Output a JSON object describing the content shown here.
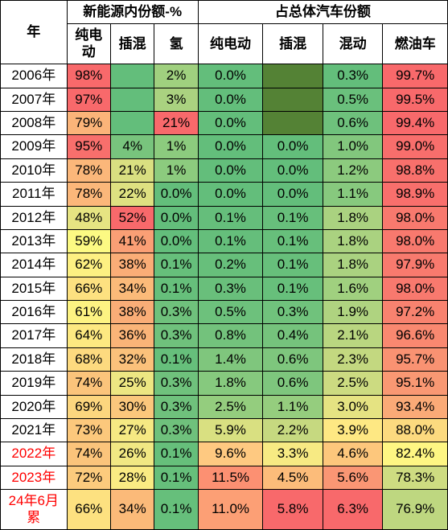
{
  "headers": {
    "year": "年",
    "group1": "新能源内份额-%",
    "group2": "占总体汽车份额",
    "nev_bev": "纯电动",
    "nev_phev": "插混",
    "nev_h2": "氢",
    "tot_bev": "纯电动",
    "tot_phev": "插混",
    "tot_hev": "混动",
    "tot_ice": "燃油车"
  },
  "rows": [
    {
      "year": "2006年",
      "yr_red": false,
      "c": [
        {
          "v": "98%",
          "bg": "#f8696b"
        },
        {
          "v": "",
          "bg": "#63be7b"
        },
        {
          "v": "2%",
          "bg": "#a0d07f"
        },
        {
          "v": "0.0%",
          "bg": "#63be7b"
        },
        {
          "v": "",
          "bg": "#548235"
        },
        {
          "v": "0.3%",
          "bg": "#63be7b"
        },
        {
          "v": "99.7%",
          "bg": "#f8696b"
        }
      ]
    },
    {
      "year": "2007年",
      "yr_red": false,
      "c": [
        {
          "v": "97%",
          "bg": "#f8696b"
        },
        {
          "v": "",
          "bg": "#63be7b"
        },
        {
          "v": "3%",
          "bg": "#aad280"
        },
        {
          "v": "0.0%",
          "bg": "#63be7b"
        },
        {
          "v": "",
          "bg": "#548235"
        },
        {
          "v": "0.5%",
          "bg": "#6ac07c"
        },
        {
          "v": "99.5%",
          "bg": "#f8696b"
        }
      ]
    },
    {
      "year": "2008年",
      "yr_red": false,
      "c": [
        {
          "v": "79%",
          "bg": "#fbb479"
        },
        {
          "v": "",
          "bg": "#63be7b"
        },
        {
          "v": "21%",
          "bg": "#f8696b"
        },
        {
          "v": "0.0%",
          "bg": "#63be7b"
        },
        {
          "v": "",
          "bg": "#548235"
        },
        {
          "v": "0.6%",
          "bg": "#6ec17c"
        },
        {
          "v": "99.4%",
          "bg": "#f8696b"
        }
      ]
    },
    {
      "year": "2009年",
      "yr_red": false,
      "c": [
        {
          "v": "95%",
          "bg": "#f86f6c"
        },
        {
          "v": "4%",
          "bg": "#78c47d"
        },
        {
          "v": "1%",
          "bg": "#8ccb7e"
        },
        {
          "v": "0.0%",
          "bg": "#63be7b"
        },
        {
          "v": "0.0%",
          "bg": "#63be7b"
        },
        {
          "v": "1.0%",
          "bg": "#82c77d"
        },
        {
          "v": "99.0%",
          "bg": "#f86e6c"
        }
      ]
    },
    {
      "year": "2010年",
      "yr_red": false,
      "c": [
        {
          "v": "78%",
          "bg": "#fbb77a"
        },
        {
          "v": "21%",
          "bg": "#d9df81"
        },
        {
          "v": "1%",
          "bg": "#8ccb7e"
        },
        {
          "v": "0.0%",
          "bg": "#63be7b"
        },
        {
          "v": "0.0%",
          "bg": "#63be7b"
        },
        {
          "v": "1.2%",
          "bg": "#8cca7e"
        },
        {
          "v": "98.8%",
          "bg": "#f8706c"
        }
      ]
    },
    {
      "year": "2011年",
      "yr_red": false,
      "c": [
        {
          "v": "78%",
          "bg": "#fbb77a"
        },
        {
          "v": "22%",
          "bg": "#dee181"
        },
        {
          "v": "0.0%",
          "bg": "#63be7b"
        },
        {
          "v": "0.0%",
          "bg": "#63be7b"
        },
        {
          "v": "0.0%",
          "bg": "#63be7b"
        },
        {
          "v": "1.1%",
          "bg": "#87c97e"
        },
        {
          "v": "98.9%",
          "bg": "#f86f6c"
        }
      ]
    },
    {
      "year": "2012年",
      "yr_red": false,
      "c": [
        {
          "v": "48%",
          "bg": "#e6e482"
        },
        {
          "v": "52%",
          "bg": "#f8696b"
        },
        {
          "v": "0.0%",
          "bg": "#63be7b"
        },
        {
          "v": "0.1%",
          "bg": "#65be7b"
        },
        {
          "v": "0.1%",
          "bg": "#67bf7b"
        },
        {
          "v": "1.8%",
          "bg": "#aad280"
        },
        {
          "v": "98.0%",
          "bg": "#f8796e"
        }
      ]
    },
    {
      "year": "2013年",
      "yr_red": false,
      "c": [
        {
          "v": "59%",
          "bg": "#fcfa83"
        },
        {
          "v": "41%",
          "bg": "#fa9f75"
        },
        {
          "v": "0.0%",
          "bg": "#63be7b"
        },
        {
          "v": "0.1%",
          "bg": "#65be7b"
        },
        {
          "v": "0.1%",
          "bg": "#67bf7b"
        },
        {
          "v": "1.8%",
          "bg": "#aad280"
        },
        {
          "v": "98.0%",
          "bg": "#f8796e"
        }
      ]
    },
    {
      "year": "2014年",
      "yr_red": false,
      "c": [
        {
          "v": "62%",
          "bg": "#fdf082"
        },
        {
          "v": "38%",
          "bg": "#faad77"
        },
        {
          "v": "0.1%",
          "bg": "#66bf7b"
        },
        {
          "v": "0.2%",
          "bg": "#67bf7b"
        },
        {
          "v": "0.1%",
          "bg": "#67bf7b"
        },
        {
          "v": "1.8%",
          "bg": "#aad280"
        },
        {
          "v": "97.9%",
          "bg": "#f87a6e"
        }
      ]
    },
    {
      "year": "2015年",
      "yr_red": false,
      "c": [
        {
          "v": "66%",
          "bg": "#fde180"
        },
        {
          "v": "34%",
          "bg": "#fbba79"
        },
        {
          "v": "0.1%",
          "bg": "#66bf7b"
        },
        {
          "v": "0.3%",
          "bg": "#69bf7b"
        },
        {
          "v": "0.1%",
          "bg": "#67bf7b"
        },
        {
          "v": "1.6%",
          "bg": "#a0d07f"
        },
        {
          "v": "98.0%",
          "bg": "#f8796e"
        }
      ]
    },
    {
      "year": "2016年",
      "yr_red": false,
      "c": [
        {
          "v": "61%",
          "bg": "#fdf382"
        },
        {
          "v": "38%",
          "bg": "#faad77"
        },
        {
          "v": "0.3%",
          "bg": "#6fc17c"
        },
        {
          "v": "0.5%",
          "bg": "#6dc17c"
        },
        {
          "v": "0.3%",
          "bg": "#70c27c"
        },
        {
          "v": "1.9%",
          "bg": "#afd380"
        },
        {
          "v": "97.2%",
          "bg": "#f8826f"
        }
      ]
    },
    {
      "year": "2017年",
      "yr_red": false,
      "c": [
        {
          "v": "64%",
          "bg": "#fde981"
        },
        {
          "v": "36%",
          "bg": "#fab478"
        },
        {
          "v": "0.3%",
          "bg": "#6fc17c"
        },
        {
          "v": "0.8%",
          "bg": "#73c27c"
        },
        {
          "v": "0.4%",
          "bg": "#75c37c"
        },
        {
          "v": "2.1%",
          "bg": "#b9d680"
        },
        {
          "v": "96.6%",
          "bg": "#f98870"
        }
      ]
    },
    {
      "year": "2018年",
      "yr_red": false,
      "c": [
        {
          "v": "68%",
          "bg": "#fdda7f"
        },
        {
          "v": "32%",
          "bg": "#fbc17b"
        },
        {
          "v": "0.1%",
          "bg": "#66bf7b"
        },
        {
          "v": "1.4%",
          "bg": "#7fc67d"
        },
        {
          "v": "0.6%",
          "bg": "#7ec67d"
        },
        {
          "v": "2.3%",
          "bg": "#c3d880"
        },
        {
          "v": "95.7%",
          "bg": "#f99272"
        }
      ]
    },
    {
      "year": "2019年",
      "yr_red": false,
      "c": [
        {
          "v": "74%",
          "bg": "#fbc47b"
        },
        {
          "v": "25%",
          "bg": "#ede682"
        },
        {
          "v": "0.3%",
          "bg": "#6fc17c"
        },
        {
          "v": "1.8%",
          "bg": "#86c97e"
        },
        {
          "v": "0.6%",
          "bg": "#7ec67d"
        },
        {
          "v": "2.5%",
          "bg": "#ccdb81"
        },
        {
          "v": "95.1%",
          "bg": "#f99873"
        }
      ]
    },
    {
      "year": "2020年",
      "yr_red": false,
      "c": [
        {
          "v": "69%",
          "bg": "#fcd67e"
        },
        {
          "v": "30%",
          "bg": "#fbc77c"
        },
        {
          "v": "0.3%",
          "bg": "#6fc17c"
        },
        {
          "v": "2.5%",
          "bg": "#94cd7e"
        },
        {
          "v": "1.1%",
          "bg": "#95cd7e"
        },
        {
          "v": "3.0%",
          "bg": "#e5e382"
        },
        {
          "v": "93.4%",
          "bg": "#faaa77"
        }
      ]
    },
    {
      "year": "2021年",
      "yr_red": false,
      "c": [
        {
          "v": "73%",
          "bg": "#fcc87c"
        },
        {
          "v": "27%",
          "bg": "#f6e983"
        },
        {
          "v": "0.3%",
          "bg": "#6fc17c"
        },
        {
          "v": "5.9%",
          "bg": "#d9e081"
        },
        {
          "v": "2.2%",
          "bg": "#c6d980"
        },
        {
          "v": "3.9%",
          "bg": "#fee883"
        },
        {
          "v": "88.0%",
          "bg": "#fcda7f"
        }
      ]
    },
    {
      "year": "2022年",
      "yr_red": true,
      "c": [
        {
          "v": "74%",
          "bg": "#fbc47b"
        },
        {
          "v": "26%",
          "bg": "#f1e883"
        },
        {
          "v": "0.1%",
          "bg": "#66bf7b"
        },
        {
          "v": "9.6%",
          "bg": "#fec981"
        },
        {
          "v": "3.3%",
          "bg": "#f7ea83"
        },
        {
          "v": "4.6%",
          "bg": "#fdc77c"
        },
        {
          "v": "82.4%",
          "bg": "#fef683"
        }
      ]
    },
    {
      "year": "2023年",
      "yr_red": true,
      "c": [
        {
          "v": "72%",
          "bg": "#fccb7d"
        },
        {
          "v": "28%",
          "bg": "#faeb83"
        },
        {
          "v": "0.1%",
          "bg": "#66bf7b"
        },
        {
          "v": "11.5%",
          "bg": "#fc9072"
        },
        {
          "v": "4.5%",
          "bg": "#fcbc7a"
        },
        {
          "v": "5.6%",
          "bg": "#fa9674"
        },
        {
          "v": "78.3%",
          "bg": "#cedc81"
        }
      ]
    },
    {
      "year": "24年6月累",
      "yr_red": true,
      "c": [
        {
          "v": "66%",
          "bg": "#fde180"
        },
        {
          "v": "34%",
          "bg": "#fbba79"
        },
        {
          "v": "0.1%",
          "bg": "#66bf7b"
        },
        {
          "v": "11.0%",
          "bg": "#fc9f75"
        },
        {
          "v": "5.8%",
          "bg": "#f8696b"
        },
        {
          "v": "6.3%",
          "bg": "#f8696b"
        },
        {
          "v": "76.9%",
          "bg": "#bed780"
        }
      ]
    }
  ]
}
